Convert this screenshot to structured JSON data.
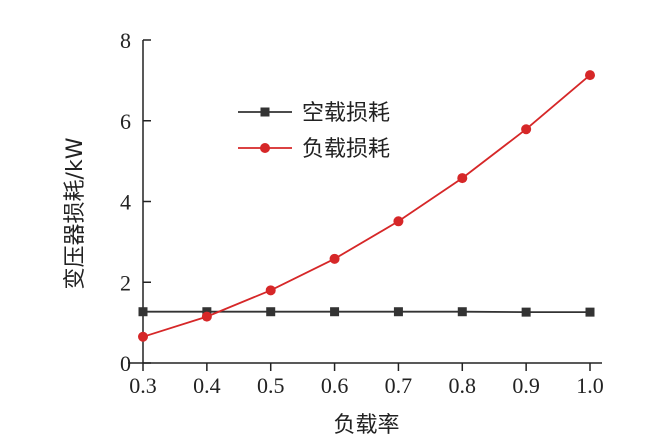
{
  "chart_data": {
    "type": "line",
    "xlabel": "负载率",
    "ylabel": "变压器损耗/kW",
    "xlim": [
      0.3,
      1.0
    ],
    "ylim": [
      0,
      8
    ],
    "x": [
      0.3,
      0.4,
      0.5,
      0.6,
      0.7,
      0.8,
      0.9,
      1.0
    ],
    "x_tick_labels": [
      "0.3",
      "0.4",
      "0.5",
      "0.6",
      "0.7",
      "0.8",
      "0.9",
      "1.0"
    ],
    "y_ticks": [
      0,
      2,
      4,
      6,
      8
    ],
    "y_tick_labels": [
      "0",
      "2",
      "4",
      "6",
      "8"
    ],
    "grid": false,
    "legend_position": "upper-left",
    "series": [
      {
        "name": "空载损耗",
        "color": "#333333",
        "marker": "square",
        "values": [
          1.27,
          1.27,
          1.27,
          1.27,
          1.27,
          1.27,
          1.26,
          1.26
        ]
      },
      {
        "name": "负载损耗",
        "color": "#d62728",
        "marker": "circle",
        "values": [
          0.65,
          1.15,
          1.8,
          2.58,
          3.51,
          4.58,
          5.79,
          7.13
        ]
      }
    ]
  }
}
